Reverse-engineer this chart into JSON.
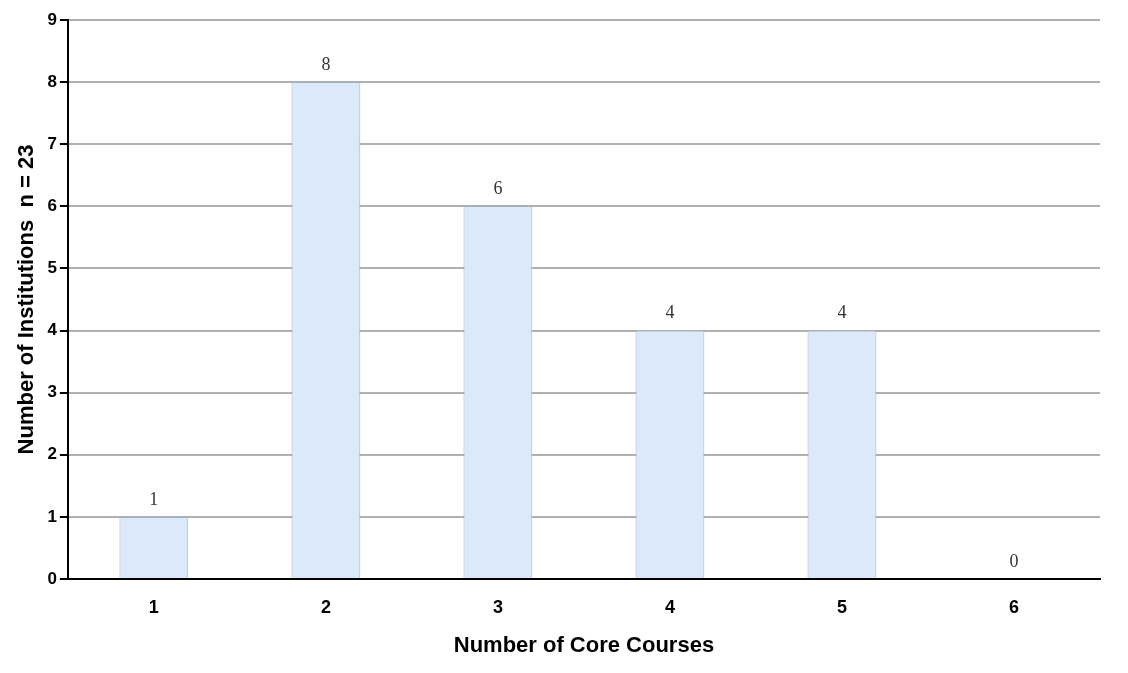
{
  "chart_data": {
    "type": "bar",
    "xlabel": "Number of Core Courses",
    "ylabel": "Number of Institutions  n = 23",
    "categories": [
      "1",
      "2",
      "3",
      "4",
      "5",
      "6"
    ],
    "values": [
      1,
      8,
      6,
      4,
      4,
      0
    ],
    "color": "#dce9fa",
    "ylim": [
      0,
      9
    ],
    "yticks": [
      0,
      1,
      2,
      3,
      4,
      5,
      6,
      7,
      8,
      9
    ],
    "grid": "y",
    "data_labels": true,
    "legend": false
  }
}
